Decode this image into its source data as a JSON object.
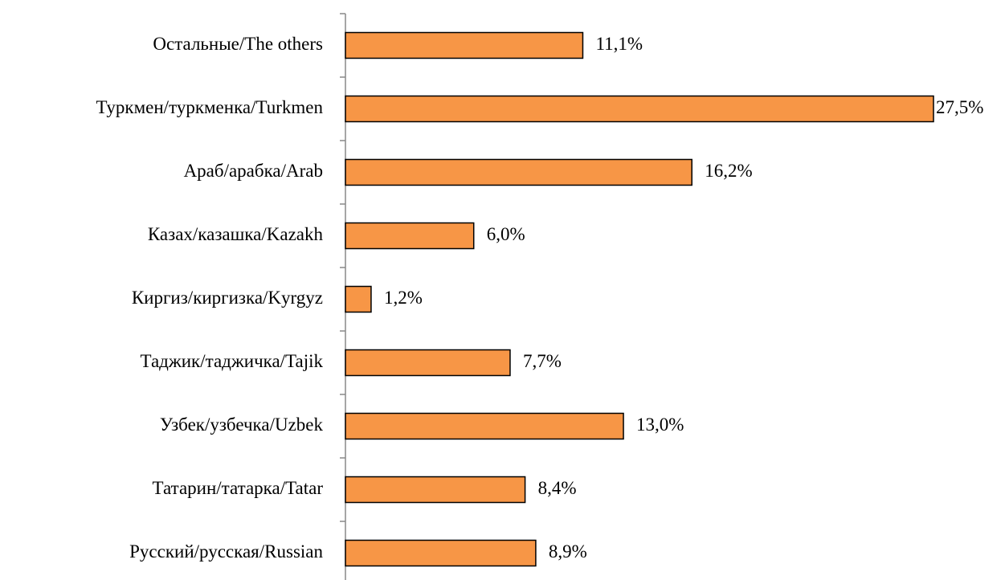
{
  "chart_data": {
    "type": "bar",
    "orientation": "horizontal",
    "categories": [
      "Остальные/The others",
      "Туркмен/туркменка/Turkmen",
      "Араб/арабка/Arab",
      "Казах/казашка/Kazakh",
      "Киргиз/киргизка/Kyrgyz",
      "Таджик/таджичка/Tajik",
      "Узбек/узбечка/Uzbek",
      "Татарин/татарка/Tatar",
      "Русский/русская/Russian"
    ],
    "values": [
      11.1,
      27.5,
      16.2,
      6.0,
      1.2,
      7.7,
      13.0,
      8.4,
      8.9
    ],
    "value_labels": [
      "11,1%",
      "27,5%",
      "16,2%",
      "6,0%",
      "1,2%",
      "7,7%",
      "13,0%",
      "8,4%",
      "8,9%"
    ],
    "color": "#f79646"
  }
}
